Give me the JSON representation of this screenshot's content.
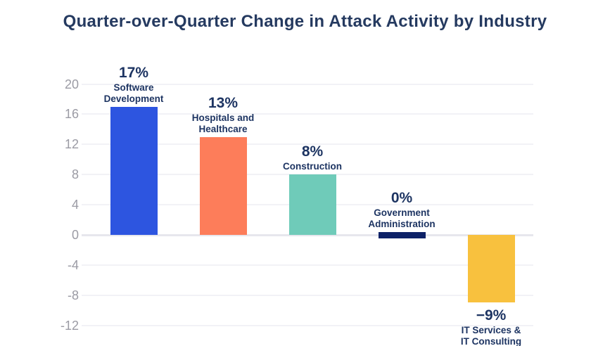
{
  "chart_data": {
    "type": "bar",
    "title": "Quarter-over-Quarter Change in Attack Activity by Industry",
    "categories": [
      "Software Development",
      "Hospitals and Healthcare",
      "Construction",
      "Government Administration",
      "IT Services & IT Consulting"
    ],
    "category_label_lines": [
      [
        "Software",
        "Development"
      ],
      [
        "Hospitals and",
        "Healthcare"
      ],
      [
        "Construction"
      ],
      [
        "Government",
        "Administration"
      ],
      [
        "IT Services &",
        "IT Consulting"
      ]
    ],
    "values": [
      17,
      13,
      8,
      0,
      -9
    ],
    "value_labels": [
      "17%",
      "13%",
      "8%",
      "0%",
      "−9%"
    ],
    "bar_colors": [
      "#2d55e0",
      "#fd7d5a",
      "#6fcbb9",
      "#0d2167",
      "#f8c13e"
    ],
    "yticks": [
      20,
      16,
      12,
      8,
      4,
      0,
      -4,
      -8,
      -12
    ],
    "ylim": [
      -14,
      22
    ],
    "xlabel": "",
    "ylabel": "",
    "grid": true,
    "legend": "none",
    "colors": {
      "title_text": "#253a60",
      "label_text": "#1d3462",
      "tick_text": "#9b9ba4",
      "gridline": "#f2f2f6",
      "zero_line": "#e7e7ed",
      "background": "#ffffff"
    }
  }
}
